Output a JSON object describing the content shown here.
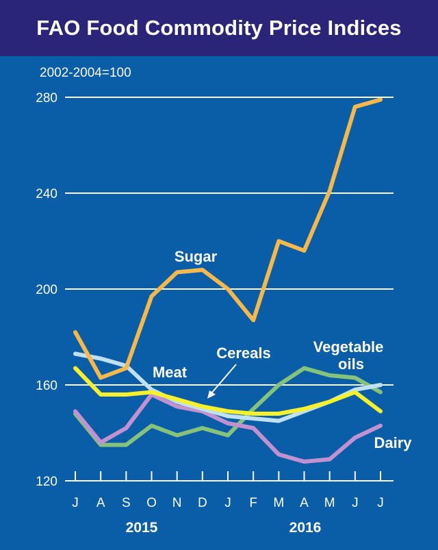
{
  "chart_data": {
    "type": "line",
    "title": "FAO Food Commodity Price Indices",
    "ylabel": "2002-2004=100",
    "ylim": [
      120,
      280
    ],
    "yticks": [
      "120",
      "160",
      "200",
      "240",
      "280"
    ],
    "categories": [
      "J",
      "A",
      "S",
      "O",
      "N",
      "D",
      "J",
      "F",
      "M",
      "A",
      "M",
      "J",
      "J"
    ],
    "years": [
      "2015",
      "2016"
    ],
    "grid": true,
    "series": [
      {
        "name": "Sugar",
        "color": "#f6b84b",
        "values": [
          182,
          163,
          167,
          197,
          207,
          208,
          200,
          187,
          220,
          216,
          241,
          276,
          279
        ]
      },
      {
        "name": "Meat",
        "color": "#bfe1f3",
        "values": [
          173,
          171,
          168,
          158,
          153,
          150,
          147,
          146,
          145,
          149,
          153,
          158,
          160
        ]
      },
      {
        "name": "Cereals",
        "color": "#f6f12a",
        "values": [
          167,
          156,
          156,
          157,
          154,
          151,
          149,
          148,
          148,
          150,
          153,
          157,
          149
        ]
      },
      {
        "name": "Vegetable oils",
        "color": "#86c27a",
        "values": [
          148,
          135,
          135,
          143,
          139,
          142,
          139,
          150,
          160,
          167,
          164,
          163,
          157
        ]
      },
      {
        "name": "Dairy",
        "color": "#c292d0",
        "values": [
          149,
          136,
          142,
          156,
          151,
          149,
          144,
          142,
          131,
          128,
          129,
          138,
          143
        ]
      }
    ],
    "labels": {
      "sugar": "Sugar",
      "meat": "Meat",
      "cereals": "Cereals",
      "vegetable_line1": "Vegetable",
      "vegetable_line2": "oils",
      "dairy": "Dairy"
    }
  }
}
